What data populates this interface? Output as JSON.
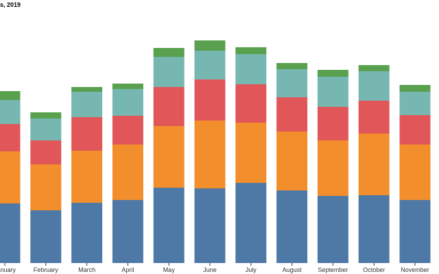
{
  "chart_data": {
    "type": "bar",
    "stacked": true,
    "title": "s, 2019",
    "xlabel": "",
    "ylabel": "",
    "grid": false,
    "ylim": [
      0,
      384
    ],
    "categories": [
      "January",
      "February",
      "March",
      "April",
      "May",
      "June",
      "July",
      "August",
      "September",
      "October",
      "November"
    ],
    "series": [
      {
        "color": "#4e79a7",
        "values": [
          87,
          77,
          88,
          92,
          110,
          109,
          117,
          106,
          98,
          99,
          92
        ]
      },
      {
        "color": "#f28e2b",
        "values": [
          76,
          67,
          76,
          81,
          90,
          99,
          88,
          86,
          81,
          90,
          81
        ]
      },
      {
        "color": "#e15759",
        "values": [
          40,
          35,
          49,
          42,
          57,
          60,
          56,
          50,
          49,
          48,
          43
        ]
      },
      {
        "color": "#76b7b2",
        "values": [
          35,
          32,
          37,
          39,
          44,
          42,
          44,
          41,
          44,
          43,
          34
        ]
      },
      {
        "color": "#59a14f",
        "values": [
          13,
          9,
          7,
          8,
          13,
          15,
          10,
          9,
          10,
          9,
          10
        ]
      }
    ]
  }
}
